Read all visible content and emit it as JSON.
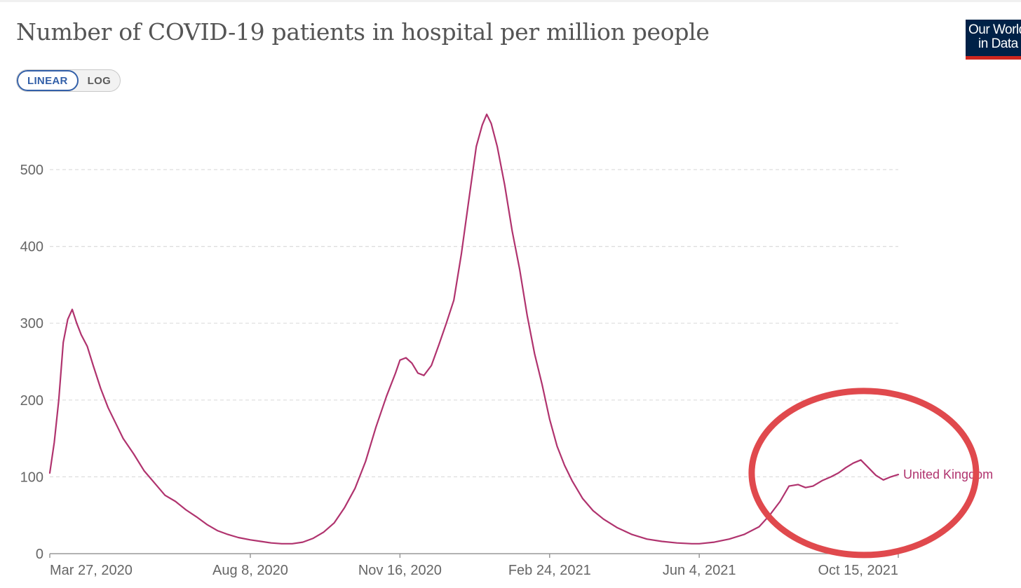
{
  "header": {
    "title": "Number of COVID-19 patients in hospital per million people",
    "logo_line1": "Our World",
    "logo_line2": "in Data"
  },
  "controls": {
    "linear_label": "LINEAR",
    "log_label": "LOG",
    "active": "LINEAR"
  },
  "colors": {
    "series": "#b0336e",
    "annotation": "#e0494d",
    "grid": "#dddddd",
    "axis": "#999999",
    "logo_bg": "#002147",
    "logo_bar": "#ce261e",
    "toggle_active": "#3360a9"
  },
  "annotation": {
    "shape": "ellipse",
    "color": "#e0494d",
    "highlights": "late 2021 values around Oct 15, 2021"
  },
  "chart_data": {
    "type": "line",
    "title": "Number of COVID-19 patients in hospital per million people",
    "xlabel": "",
    "ylabel": "",
    "ylim": [
      0,
      580
    ],
    "yticks": [
      0,
      100,
      200,
      300,
      400,
      500
    ],
    "grid": true,
    "x_range": [
      "2020-03-27",
      "2021-10-15"
    ],
    "x_ticks": [
      {
        "date": "2020-03-27",
        "label": "Mar 27, 2020"
      },
      {
        "date": "2020-08-08",
        "label": "Aug 8, 2020"
      },
      {
        "date": "2020-11-16",
        "label": "Nov 16, 2020"
      },
      {
        "date": "2021-02-24",
        "label": "Feb 24, 2021"
      },
      {
        "date": "2021-06-04",
        "label": "Jun 4, 2021"
      },
      {
        "date": "2021-10-15",
        "label": "Oct 15, 2021"
      }
    ],
    "series": [
      {
        "name": "United Kingdom",
        "points": [
          [
            "2020-03-27",
            105
          ],
          [
            "2020-03-30",
            145
          ],
          [
            "2020-04-02",
            200
          ],
          [
            "2020-04-05",
            275
          ],
          [
            "2020-04-08",
            305
          ],
          [
            "2020-04-11",
            318
          ],
          [
            "2020-04-14",
            300
          ],
          [
            "2020-04-17",
            285
          ],
          [
            "2020-04-21",
            270
          ],
          [
            "2020-04-25",
            245
          ],
          [
            "2020-04-30",
            215
          ],
          [
            "2020-05-05",
            190
          ],
          [
            "2020-05-10",
            170
          ],
          [
            "2020-05-15",
            150
          ],
          [
            "2020-05-22",
            130
          ],
          [
            "2020-05-29",
            108
          ],
          [
            "2020-06-05",
            92
          ],
          [
            "2020-06-12",
            76
          ],
          [
            "2020-06-19",
            68
          ],
          [
            "2020-06-26",
            57
          ],
          [
            "2020-07-03",
            48
          ],
          [
            "2020-07-10",
            38
          ],
          [
            "2020-07-17",
            30
          ],
          [
            "2020-07-24",
            25
          ],
          [
            "2020-07-31",
            21
          ],
          [
            "2020-08-08",
            18
          ],
          [
            "2020-08-15",
            16
          ],
          [
            "2020-08-22",
            14
          ],
          [
            "2020-08-29",
            13
          ],
          [
            "2020-09-05",
            13
          ],
          [
            "2020-09-12",
            15
          ],
          [
            "2020-09-19",
            20
          ],
          [
            "2020-09-26",
            28
          ],
          [
            "2020-10-03",
            40
          ],
          [
            "2020-10-10",
            60
          ],
          [
            "2020-10-17",
            85
          ],
          [
            "2020-10-24",
            120
          ],
          [
            "2020-10-31",
            165
          ],
          [
            "2020-11-07",
            205
          ],
          [
            "2020-11-13",
            235
          ],
          [
            "2020-11-16",
            252
          ],
          [
            "2020-11-20",
            255
          ],
          [
            "2020-11-24",
            248
          ],
          [
            "2020-11-28",
            235
          ],
          [
            "2020-12-02",
            232
          ],
          [
            "2020-12-07",
            245
          ],
          [
            "2020-12-12",
            272
          ],
          [
            "2020-12-17",
            300
          ],
          [
            "2020-12-22",
            330
          ],
          [
            "2020-12-27",
            390
          ],
          [
            "2021-01-01",
            460
          ],
          [
            "2021-01-06",
            530
          ],
          [
            "2021-01-10",
            558
          ],
          [
            "2021-01-13",
            572
          ],
          [
            "2021-01-16",
            560
          ],
          [
            "2021-01-20",
            530
          ],
          [
            "2021-01-25",
            480
          ],
          [
            "2021-01-30",
            420
          ],
          [
            "2021-02-04",
            370
          ],
          [
            "2021-02-09",
            310
          ],
          [
            "2021-02-14",
            260
          ],
          [
            "2021-02-19",
            220
          ],
          [
            "2021-02-24",
            175
          ],
          [
            "2021-03-01",
            140
          ],
          [
            "2021-03-06",
            115
          ],
          [
            "2021-03-11",
            95
          ],
          [
            "2021-03-18",
            72
          ],
          [
            "2021-03-25",
            56
          ],
          [
            "2021-04-01",
            45
          ],
          [
            "2021-04-10",
            34
          ],
          [
            "2021-04-20",
            25
          ],
          [
            "2021-04-30",
            19
          ],
          [
            "2021-05-10",
            16
          ],
          [
            "2021-05-20",
            14
          ],
          [
            "2021-05-30",
            13
          ],
          [
            "2021-06-04",
            13
          ],
          [
            "2021-06-14",
            15
          ],
          [
            "2021-06-24",
            19
          ],
          [
            "2021-07-04",
            25
          ],
          [
            "2021-07-14",
            35
          ],
          [
            "2021-07-21",
            50
          ],
          [
            "2021-07-28",
            68
          ],
          [
            "2021-08-03",
            88
          ],
          [
            "2021-08-09",
            90
          ],
          [
            "2021-08-14",
            86
          ],
          [
            "2021-08-19",
            88
          ],
          [
            "2021-08-25",
            95
          ],
          [
            "2021-08-31",
            100
          ],
          [
            "2021-09-05",
            105
          ],
          [
            "2021-09-10",
            112
          ],
          [
            "2021-09-15",
            118
          ],
          [
            "2021-09-20",
            122
          ],
          [
            "2021-09-25",
            112
          ],
          [
            "2021-09-30",
            102
          ],
          [
            "2021-10-05",
            96
          ],
          [
            "2021-10-10",
            100
          ],
          [
            "2021-10-15",
            103
          ]
        ]
      }
    ]
  }
}
